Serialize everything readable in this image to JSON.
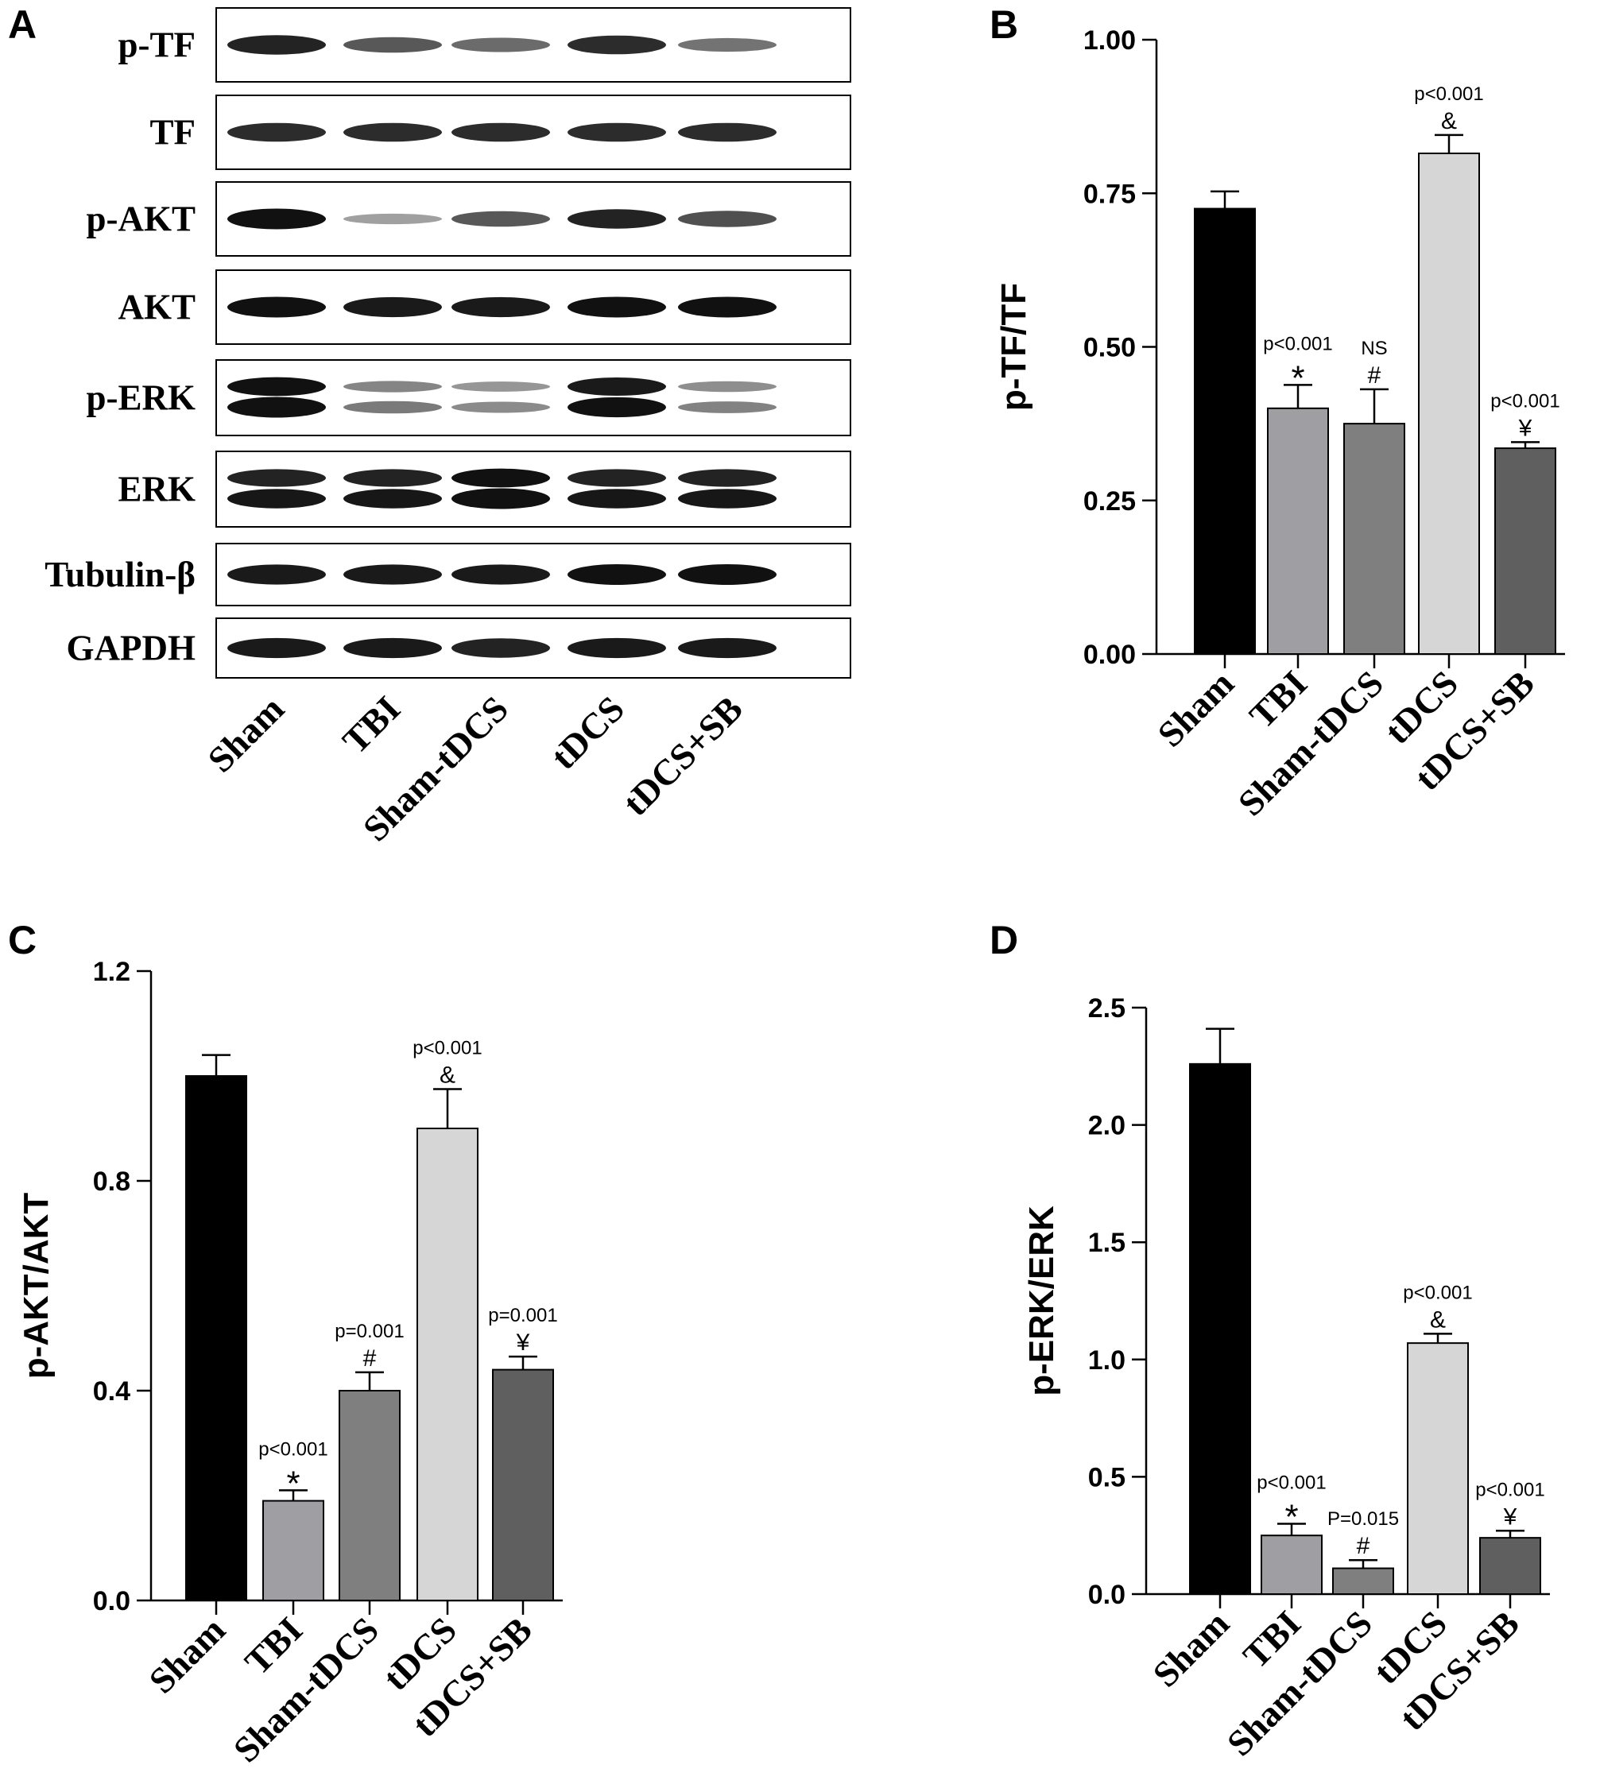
{
  "blot": {
    "panel_letter": "A",
    "rows": [
      {
        "label": "p-TF",
        "bands": [
          0.9,
          0.6,
          0.5,
          0.85,
          0.45
        ],
        "double": false
      },
      {
        "label": "TF",
        "bands": [
          0.85,
          0.85,
          0.85,
          0.85,
          0.85
        ],
        "double": false
      },
      {
        "label": "p-AKT",
        "bands": [
          1.0,
          0.2,
          0.6,
          0.9,
          0.65
        ],
        "double": false
      },
      {
        "label": "AKT",
        "bands": [
          1.0,
          0.95,
          0.95,
          1.0,
          1.0
        ],
        "double": false
      },
      {
        "label": "p-ERK",
        "bands": [
          1.0,
          0.35,
          0.25,
          0.95,
          0.3
        ],
        "double": true
      },
      {
        "label": "ERK",
        "bands": [
          0.9,
          0.9,
          1.0,
          0.9,
          0.9
        ],
        "double": true
      },
      {
        "label": "Tubulin-β",
        "bands": [
          0.95,
          0.95,
          0.95,
          1.0,
          1.0
        ],
        "double": false
      },
      {
        "label": "GAPDH",
        "bands": [
          0.95,
          0.95,
          0.9,
          0.95,
          0.95
        ],
        "double": false
      }
    ],
    "lanes": [
      "Sham",
      "TBI",
      "Sham-tDCS",
      "tDCS",
      "tDCS+SB"
    ]
  },
  "colors": {
    "bars": [
      "#000000",
      "#9e9ea3",
      "#7f7f7f",
      "#d6d6d6",
      "#5f5f5f"
    ],
    "axis": "#000000"
  },
  "chart_data": [
    {
      "panel_letter": "B",
      "type": "bar",
      "categories": [
        "Sham",
        "TBI",
        "Sham-tDCS",
        "tDCS",
        "tDCS+SB"
      ],
      "values": [
        0.725,
        0.4,
        0.375,
        0.815,
        0.335
      ],
      "errors": [
        0.028,
        0.038,
        0.056,
        0.03,
        0.01
      ],
      "ylabel": "p-TF/TF",
      "ylim": [
        0,
        1.0
      ],
      "yticks": [
        "0.00",
        "0.25",
        "0.50",
        "0.75",
        "1.00"
      ],
      "ytick_values": [
        0,
        0.25,
        0.5,
        0.75,
        1.0
      ],
      "annotations": [
        {
          "category": "TBI",
          "p": "p<0.001",
          "symbol": "*"
        },
        {
          "category": "Sham-tDCS",
          "p": "NS",
          "symbol": "#"
        },
        {
          "category": "tDCS",
          "p": "p<0.001",
          "symbol": "&"
        },
        {
          "category": "tDCS+SB",
          "p": "p<0.001",
          "symbol": "¥"
        }
      ]
    },
    {
      "panel_letter": "C",
      "type": "bar",
      "categories": [
        "Sham",
        "TBI",
        "Sham-tDCS",
        "tDCS",
        "tDCS+SB"
      ],
      "values": [
        1.0,
        0.19,
        0.4,
        0.9,
        0.44
      ],
      "errors": [
        0.04,
        0.02,
        0.035,
        0.075,
        0.025
      ],
      "ylabel": "p-AKT/AKT",
      "ylim": [
        0,
        1.2
      ],
      "yticks": [
        "0.0",
        "0.4",
        "0.8",
        "1.2"
      ],
      "ytick_values": [
        0,
        0.4,
        0.8,
        1.2
      ],
      "annotations": [
        {
          "category": "TBI",
          "p": "p<0.001",
          "symbol": "*"
        },
        {
          "category": "Sham-tDCS",
          "p": "p=0.001",
          "symbol": "#"
        },
        {
          "category": "tDCS",
          "p": "p<0.001",
          "symbol": "&"
        },
        {
          "category": "tDCS+SB",
          "p": "p=0.001",
          "symbol": "¥"
        }
      ]
    },
    {
      "panel_letter": "D",
      "type": "bar",
      "categories": [
        "Sham",
        "TBI",
        "Sham-tDCS",
        "tDCS",
        "tDCS+SB"
      ],
      "values": [
        2.26,
        0.25,
        0.11,
        1.07,
        0.24
      ],
      "errors": [
        0.15,
        0.05,
        0.035,
        0.04,
        0.03
      ],
      "ylabel": "p-ERK/ERK",
      "ylim": [
        0,
        2.5
      ],
      "yticks": [
        "0.0",
        "0.5",
        "1.0",
        "1.5",
        "2.0",
        "2.5"
      ],
      "ytick_values": [
        0,
        0.5,
        1.0,
        1.5,
        2.0,
        2.5
      ],
      "annotations": [
        {
          "category": "TBI",
          "p": "p<0.001",
          "symbol": "*"
        },
        {
          "category": "Sham-tDCS",
          "p": "P=0.015",
          "symbol": "#"
        },
        {
          "category": "tDCS",
          "p": "p<0.001",
          "symbol": "&"
        },
        {
          "category": "tDCS+SB",
          "p": "p<0.001",
          "symbol": "¥"
        }
      ]
    }
  ]
}
